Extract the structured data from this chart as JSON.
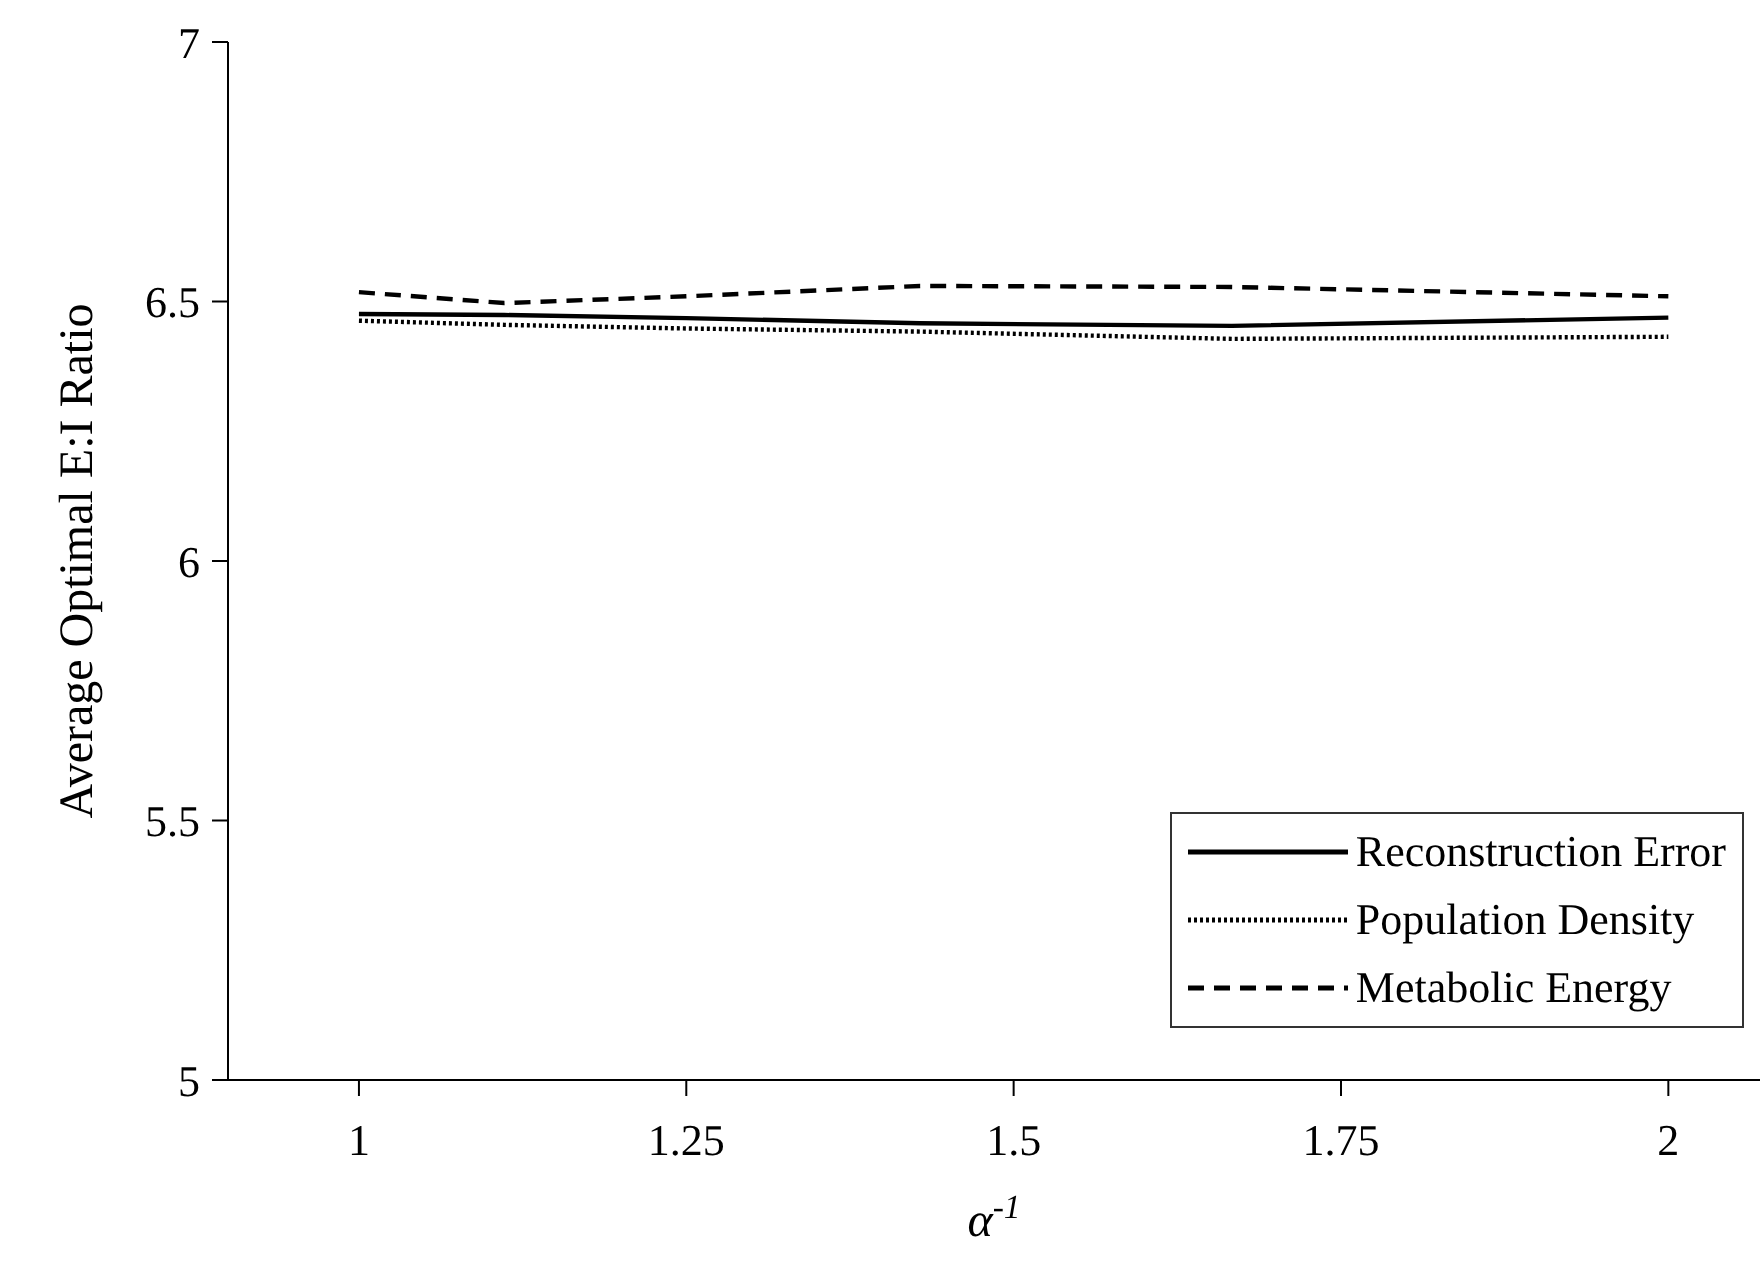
{
  "chart_data": {
    "type": "line",
    "xlabel": "α$^{-1}$",
    "ylabel": "Average Optimal E:I Ratio",
    "x": [
      1,
      1.111,
      1.25,
      1.4286,
      1.6667,
      2
    ],
    "series": [
      {
        "name": "Reconstruction Error",
        "color": "#000000",
        "line_style": "solid",
        "values": [
          6.476,
          6.474,
          6.468,
          6.458,
          6.453,
          6.469
        ]
      },
      {
        "name": "Population Density",
        "color": "#000000",
        "line_style": "dotted",
        "values": [
          6.463,
          6.455,
          6.448,
          6.442,
          6.428,
          6.432
        ]
      },
      {
        "name": "Metabolic Energy",
        "color": "#000000",
        "line_style": "dashed",
        "values": [
          6.518,
          6.497,
          6.51,
          6.53,
          6.528,
          6.51
        ]
      }
    ],
    "xlim": [
      0.9,
      2.07
    ],
    "xticks": [
      1,
      1.25,
      1.5,
      1.75,
      2
    ],
    "ylim": [
      5,
      7
    ],
    "yticks": [
      5,
      5.5,
      6,
      6.5,
      7
    ],
    "grid": false,
    "legend": "bottom right",
    "marker": "none"
  }
}
